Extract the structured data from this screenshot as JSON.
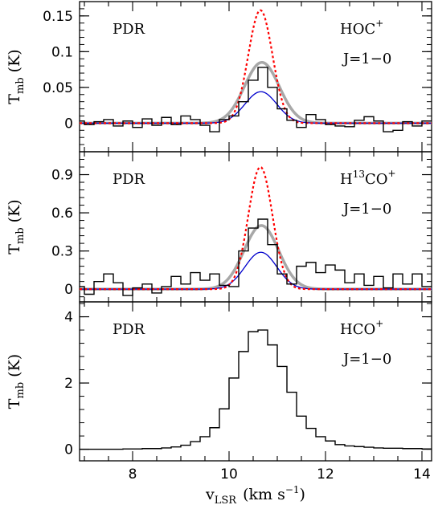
{
  "colors": {
    "spectrum": "#000000",
    "model_red": "#ff0000",
    "model_blue": "#0000cc",
    "fit_gray": "#a8a8a8"
  },
  "chart_data": [
    {
      "type": "line",
      "panel": "top",
      "annotations": {
        "region": "PDR",
        "species": "HOC",
        "species_sup": "+",
        "transition": "J=1−0"
      },
      "ylabel": "T",
      "ylabel_sub": "mb",
      "ylabel_unit": "(K)",
      "xlim": [
        6.9,
        14.2
      ],
      "ylim": [
        -0.04,
        0.17
      ],
      "yticks": [
        0,
        0.05,
        0.1,
        0.15
      ],
      "ytick_labels": [
        "0",
        "0.05",
        "0.1",
        "0.15"
      ],
      "spectrum": {
        "x": [
          6.9,
          7.1,
          7.3,
          7.5,
          7.7,
          7.9,
          8.1,
          8.3,
          8.5,
          8.7,
          8.9,
          9.1,
          9.3,
          9.5,
          9.7,
          9.9,
          10.1,
          10.3,
          10.5,
          10.7,
          10.9,
          11.1,
          11.3,
          11.5,
          11.7,
          11.9,
          12.1,
          12.3,
          12.5,
          12.7,
          12.9,
          13.1,
          13.3,
          13.5,
          13.7,
          13.9,
          14.1
        ],
        "y": [
          0.003,
          -0.002,
          0.002,
          0.005,
          -0.004,
          0.003,
          -0.006,
          0.006,
          -0.003,
          0.008,
          -0.002,
          0.01,
          0.005,
          -0.003,
          -0.012,
          0.005,
          0.01,
          0.03,
          0.06,
          0.078,
          0.05,
          0.02,
          0.004,
          -0.006,
          0.012,
          0.005,
          -0.002,
          -0.004,
          -0.005,
          0.004,
          0.009,
          0.003,
          -0.012,
          -0.01,
          0.002,
          -0.004,
          0.003
        ]
      },
      "gauss_gray": {
        "amp": 0.085,
        "center": 10.68,
        "sigma": 0.36
      },
      "gauss_red": {
        "amp": 0.158,
        "center": 10.65,
        "sigma": 0.25
      },
      "gauss_blue": {
        "amp": 0.044,
        "center": 10.66,
        "sigma": 0.33
      }
    },
    {
      "type": "line",
      "panel": "middle",
      "annotations": {
        "region": "PDR",
        "species_pre": "H",
        "species_sup1": "13",
        "species_mid": "CO",
        "species_sup": "+",
        "transition": "J=1−0"
      },
      "ylabel": "T",
      "ylabel_sub": "mb",
      "ylabel_unit": "(K)",
      "xlim": [
        6.9,
        14.2
      ],
      "ylim": [
        -0.1,
        1.08
      ],
      "yticks": [
        0,
        0.3,
        0.6,
        0.9
      ],
      "ytick_labels": [
        "0",
        "0.3",
        "0.6",
        "0.9"
      ],
      "spectrum": {
        "x": [
          6.9,
          7.1,
          7.3,
          7.5,
          7.7,
          7.9,
          8.1,
          8.3,
          8.5,
          8.7,
          8.9,
          9.1,
          9.3,
          9.5,
          9.7,
          9.9,
          10.1,
          10.3,
          10.5,
          10.7,
          10.9,
          11.1,
          11.3,
          11.5,
          11.7,
          11.9,
          12.1,
          12.3,
          12.5,
          12.7,
          12.9,
          13.1,
          13.3,
          13.5,
          13.7,
          13.9,
          14.1
        ],
        "y": [
          0.02,
          -0.04,
          0.06,
          0.12,
          0.05,
          -0.05,
          0.01,
          0.04,
          -0.03,
          0.02,
          0.1,
          0.04,
          0.13,
          0.07,
          0.12,
          0.03,
          0.02,
          0.3,
          0.48,
          0.55,
          0.35,
          0.12,
          0.04,
          0.18,
          0.21,
          0.13,
          0.19,
          0.15,
          0.05,
          0.12,
          0.03,
          0.1,
          0.01,
          0.12,
          0.04,
          0.12,
          0.02
        ]
      },
      "gauss_gray": {
        "amp": 0.5,
        "center": 10.67,
        "sigma": 0.36
      },
      "gauss_red": {
        "amp": 0.96,
        "center": 10.65,
        "sigma": 0.25
      },
      "gauss_blue": {
        "amp": 0.29,
        "center": 10.66,
        "sigma": 0.33
      }
    },
    {
      "type": "line",
      "panel": "bottom",
      "annotations": {
        "region": "PDR",
        "species": "HCO",
        "species_sup": "+",
        "transition": "J=1−0"
      },
      "ylabel": "T",
      "ylabel_sub": "mb",
      "ylabel_unit": "(K)",
      "xlim": [
        6.9,
        14.2
      ],
      "ylim": [
        -0.35,
        4.45
      ],
      "yticks": [
        0,
        2,
        4
      ],
      "ytick_labels": [
        "0",
        "2",
        "4"
      ],
      "xticks": [
        8,
        10,
        12,
        14
      ],
      "xtick_labels": [
        "8",
        "10",
        "12",
        "14"
      ],
      "xlabel": "v",
      "xlabel_sub": "LSR",
      "xlabel_unit_pre": "(km s",
      "xlabel_unit_sup": "−1",
      "xlabel_unit_post": ")",
      "spectrum": {
        "x": [
          6.9,
          7.1,
          7.3,
          7.5,
          7.7,
          7.9,
          8.1,
          8.3,
          8.5,
          8.7,
          8.9,
          9.1,
          9.3,
          9.5,
          9.7,
          9.9,
          10.1,
          10.3,
          10.5,
          10.7,
          10.9,
          11.1,
          11.3,
          11.5,
          11.7,
          11.9,
          12.1,
          12.3,
          12.5,
          12.7,
          12.9,
          13.1,
          13.3,
          13.5,
          13.7,
          13.9,
          14.1
        ],
        "y": [
          0,
          0,
          0,
          0,
          0,
          0.01,
          0.01,
          0.02,
          0.02,
          0.04,
          0.07,
          0.12,
          0.23,
          0.38,
          0.65,
          1.22,
          2.15,
          2.95,
          3.55,
          3.6,
          3.15,
          2.5,
          1.72,
          1.0,
          0.63,
          0.38,
          0.25,
          0.14,
          0.1,
          0.08,
          0.06,
          0.04,
          0.03,
          0.03,
          0.02,
          0.02,
          0.01
        ]
      }
    }
  ]
}
